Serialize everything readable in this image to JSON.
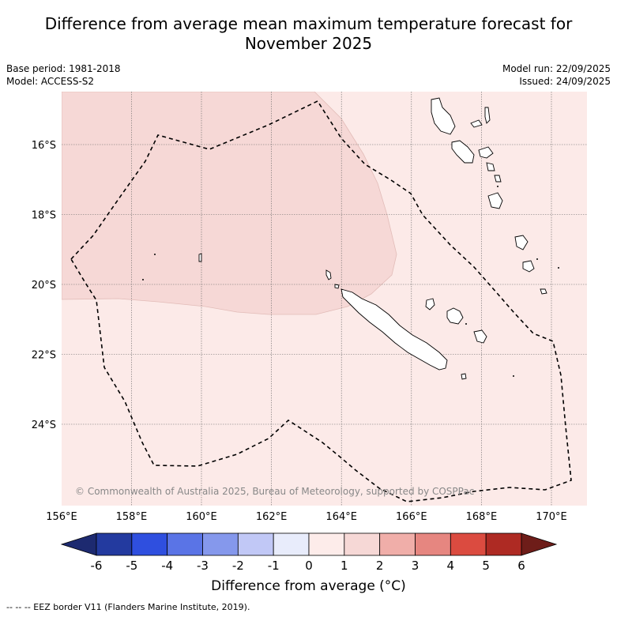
{
  "title": {
    "line1": "Difference from average mean maximum temperature forecast for",
    "line2": "November 2025"
  },
  "meta": {
    "base_period": "Base period: 1981-2018",
    "model": "Model: ACCESS-S2",
    "model_run": "Model run: 22/09/2025",
    "issued": "Issued: 24/09/2025"
  },
  "map": {
    "lon_labels": [
      "156°E",
      "158°E",
      "160°E",
      "162°E",
      "164°E",
      "166°E",
      "168°E",
      "170°E"
    ],
    "lat_labels": [
      "16°S",
      "18°S",
      "20°S",
      "22°S",
      "24°S"
    ],
    "copyright": "© Commonwealth of Australia 2025, Bureau of Meteorology, supported by COSPPac",
    "fill_colors": {
      "zero_to_one": "#fceae8",
      "one_to_two": "#f6d8d6"
    }
  },
  "colorbar": {
    "ticks": [
      "-6",
      "-5",
      "-4",
      "-3",
      "-2",
      "-1",
      "0",
      "1",
      "2",
      "3",
      "4",
      "5",
      "6"
    ],
    "colors": [
      "#233a9f",
      "#2f4fdf",
      "#5a74e6",
      "#8598ec",
      "#c1c8f6",
      "#e8ecfb",
      "#fdecea",
      "#f6d8d6",
      "#f0aea9",
      "#e68680",
      "#db4b40",
      "#ae2a23"
    ],
    "low_extend_color": "#1d2a70",
    "high_extend_color": "#6e1d19",
    "label": "Difference from average (°C)"
  },
  "footer": {
    "legend_text": "-- -- -- EEZ border V11 (Flanders Marine Institute, 2019)."
  }
}
